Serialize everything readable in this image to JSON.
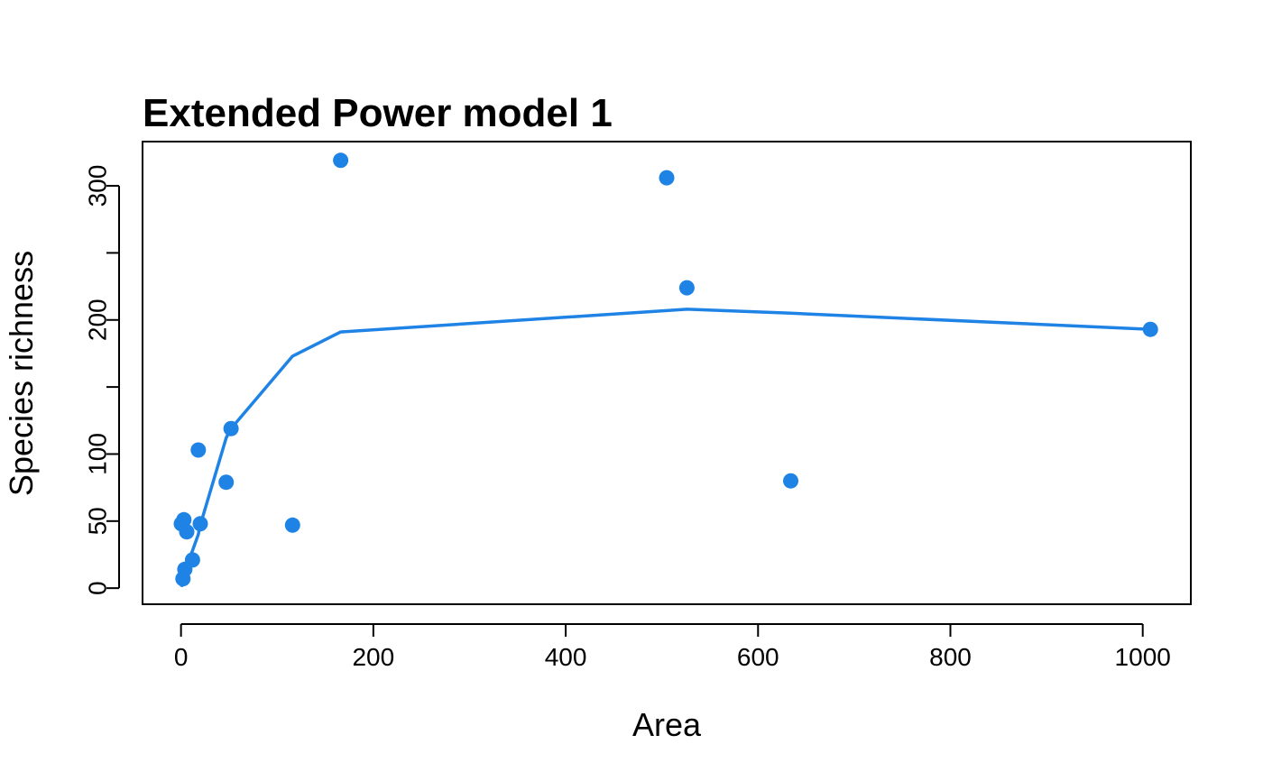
{
  "chart_data": {
    "type": "scatter",
    "title": "Extended Power model 1",
    "xlabel": "Area",
    "ylabel": "Species richness",
    "xlim": [
      -40,
      1050
    ],
    "ylim": [
      -12,
      333
    ],
    "x_ticks": [
      0,
      200,
      400,
      600,
      800,
      1000
    ],
    "x_tick_labels": [
      "0",
      "200",
      "400",
      "600",
      "800",
      "1000"
    ],
    "y_ticks": [
      0,
      50,
      100,
      150,
      200,
      250,
      300
    ],
    "y_tick_labels": [
      "0",
      "50",
      "100",
      "",
      "200",
      "",
      "300"
    ],
    "grid": false,
    "legend": "none",
    "point_color": "#1f83e6",
    "line_color": "#1f83e6",
    "points": [
      {
        "x": 0.3,
        "y": 48
      },
      {
        "x": 2,
        "y": 7
      },
      {
        "x": 3,
        "y": 51
      },
      {
        "x": 4,
        "y": 14
      },
      {
        "x": 6,
        "y": 42
      },
      {
        "x": 12,
        "y": 21
      },
      {
        "x": 18,
        "y": 103
      },
      {
        "x": 20,
        "y": 48
      },
      {
        "x": 47,
        "y": 79
      },
      {
        "x": 52,
        "y": 119
      },
      {
        "x": 116,
        "y": 47
      },
      {
        "x": 166,
        "y": 319
      },
      {
        "x": 505,
        "y": 306
      },
      {
        "x": 526,
        "y": 224
      },
      {
        "x": 634,
        "y": 80
      },
      {
        "x": 1008,
        "y": 193
      }
    ],
    "fit_line": [
      {
        "x": 0.3,
        "y": 1
      },
      {
        "x": 2,
        "y": 5
      },
      {
        "x": 3,
        "y": 8
      },
      {
        "x": 4,
        "y": 12
      },
      {
        "x": 6,
        "y": 17
      },
      {
        "x": 12,
        "y": 28
      },
      {
        "x": 18,
        "y": 40
      },
      {
        "x": 20,
        "y": 47
      },
      {
        "x": 47,
        "y": 112
      },
      {
        "x": 52,
        "y": 119
      },
      {
        "x": 116,
        "y": 173
      },
      {
        "x": 166,
        "y": 191
      },
      {
        "x": 505,
        "y": 207
      },
      {
        "x": 526,
        "y": 208
      },
      {
        "x": 634,
        "y": 205
      },
      {
        "x": 1008,
        "y": 193
      }
    ]
  }
}
